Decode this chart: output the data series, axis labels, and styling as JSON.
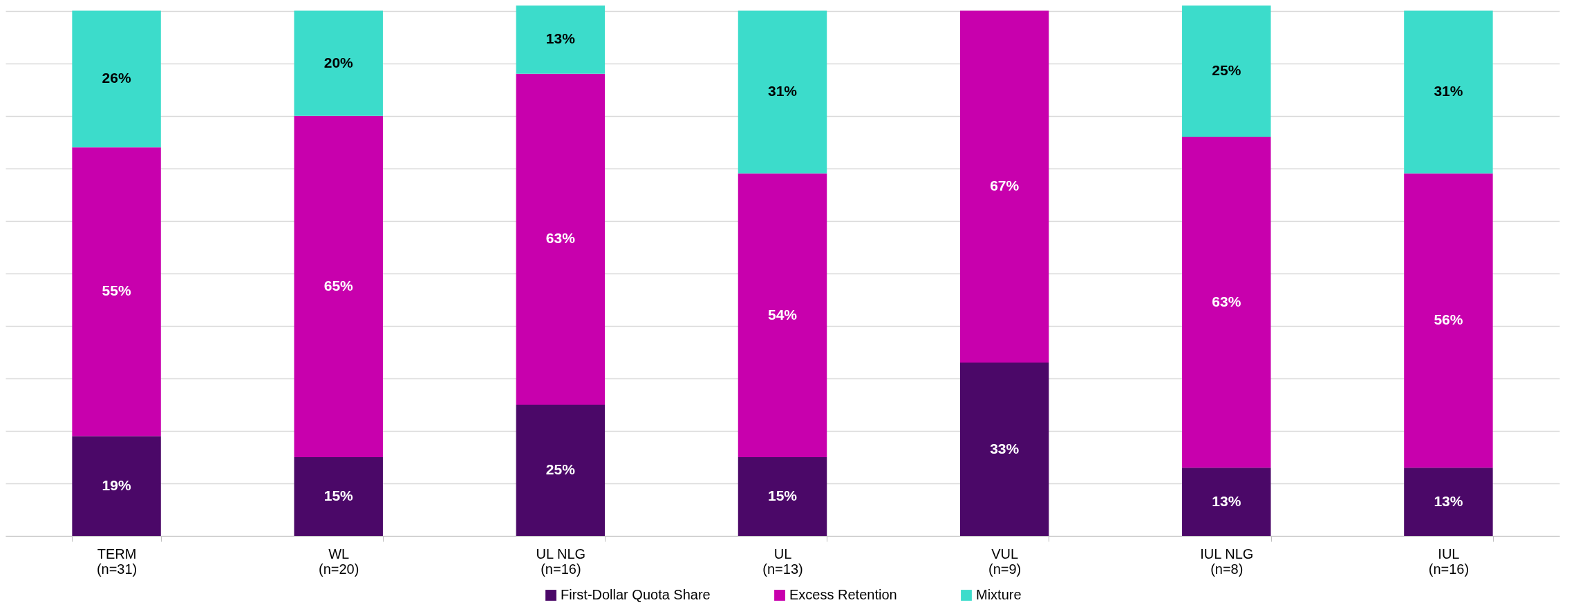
{
  "chart_data": {
    "type": "bar",
    "stacked": true,
    "categories": [
      "TERM\n(n=31)",
      "WL\n(n=20)",
      "UL NLG\n(n=16)",
      "UL\n(n=13)",
      "VUL\n(n=9)",
      "IUL NLG\n(n=8)",
      "IUL\n(n=16)"
    ],
    "series": [
      {
        "name": "First-Dollar Quota Share",
        "color": "#4b0868",
        "values": [
          19,
          15,
          25,
          15,
          33,
          13,
          13
        ],
        "value_labels": [
          "19%",
          "15%",
          "25%",
          "15%",
          "33%",
          "13%",
          "13%"
        ]
      },
      {
        "name": "Excess Retention",
        "color": "#c800ad",
        "values": [
          55,
          65,
          63,
          54,
          67,
          63,
          56
        ],
        "value_labels": [
          "55%",
          "65%",
          "63%",
          "54%",
          "67%",
          "63%",
          "56%"
        ]
      },
      {
        "name": "Mixture",
        "color": "#3cdccb",
        "values": [
          26,
          20,
          13,
          31,
          null,
          25,
          31
        ],
        "value_labels": [
          "26%",
          "20%",
          "13%",
          "31%",
          null,
          "25%",
          "31%"
        ]
      }
    ],
    "ylim": [
      0,
      101
    ],
    "yticks": [
      0,
      10,
      20,
      30,
      40,
      50,
      60,
      70,
      80,
      90,
      100
    ],
    "grid": "y",
    "tick_labels": "x",
    "legend": "bottom"
  }
}
